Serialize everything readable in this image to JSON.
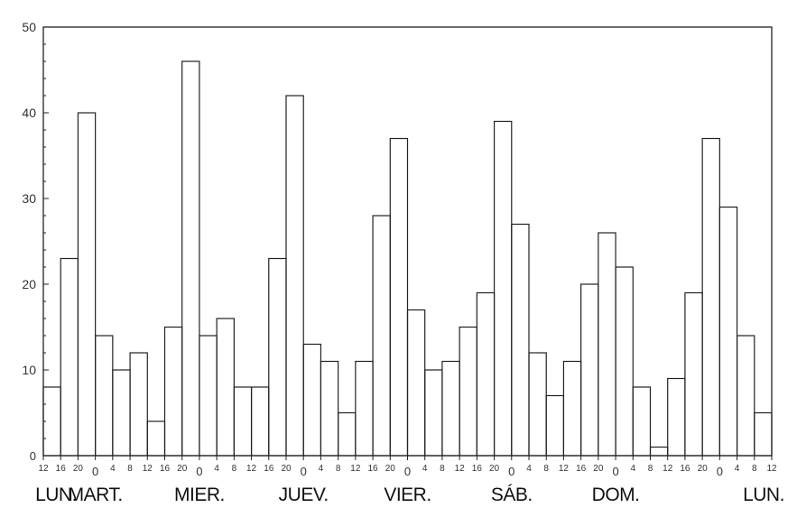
{
  "chart_data": {
    "type": "bar",
    "style": "step-histogram",
    "ylim": [
      0,
      50
    ],
    "y_ticks": [
      "0",
      "10",
      "20",
      "30",
      "40",
      "50"
    ],
    "hour_labels": [
      "12",
      "16",
      "20",
      "0",
      "4",
      "8",
      "12",
      "16",
      "20",
      "0",
      "4",
      "8",
      "12",
      "16",
      "20",
      "0",
      "4",
      "8",
      "12",
      "16",
      "20",
      "0",
      "4",
      "8",
      "12",
      "16",
      "20",
      "0",
      "4",
      "8",
      "12",
      "16",
      "20",
      "0",
      "4",
      "8",
      "12",
      "16",
      "20",
      "0",
      "4",
      "8",
      "12"
    ],
    "day_labels": [
      "LUN.",
      "MART.",
      "MIER.",
      "JUEV.",
      "VIER.",
      "SÁB.",
      "DOM.",
      "LUN."
    ],
    "values": [
      8,
      23,
      40,
      14,
      10,
      12,
      4,
      15,
      46,
      14,
      16,
      8,
      8,
      23,
      42,
      13,
      11,
      5,
      11,
      28,
      37,
      17,
      10,
      11,
      15,
      19,
      39,
      27,
      12,
      7,
      11,
      20,
      26,
      22,
      8,
      1,
      9,
      19,
      37,
      29,
      14,
      5
    ],
    "grid": false,
    "xlabel": "",
    "ylabel": ""
  }
}
